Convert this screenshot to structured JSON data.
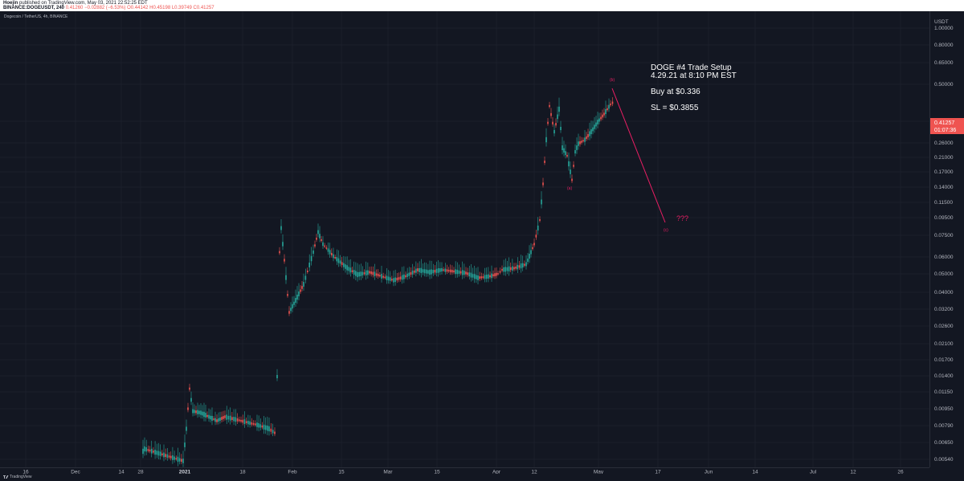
{
  "header": {
    "publisher": "Hoejin",
    "published_text": "published on TradingView.com, May 03, 2021 22:52:25 EDT",
    "symbol": "BINANCE:DOGEUSDT, 240",
    "open": "0.41260",
    "change": "−0.02882 (−6.53%)",
    "ohlc_text": "O0.44142 H0.45198 L0.39749 C0.41257"
  },
  "chart_title": "Dogecoin / TetherUS, 4h, BINANCE",
  "annotations": {
    "setup_title": "DOGE #4 Trade Setup",
    "setup_date": "4.29.21 at 8:10 PM EST",
    "buy": "Buy at $0.336",
    "sl": "SL = $0.3855",
    "question": "???",
    "wave_a": "(a)",
    "wave_b": "(b)",
    "wave_c": "(c)"
  },
  "price_axis": {
    "unit": "USDT",
    "labels": [
      "1.00000",
      "0.80000",
      "0.65000",
      "0.50000",
      "0.32000",
      "0.26000",
      "0.21000",
      "0.17000",
      "0.14000",
      "0.11500",
      "0.09500",
      "0.07500",
      "0.06000",
      "0.05000",
      "0.04000",
      "0.03200",
      "0.02600",
      "0.02100",
      "0.01700",
      "0.01400",
      "0.01150",
      "0.00950",
      "0.00790",
      "0.00650",
      "0.00540"
    ],
    "current_price": "0.41257",
    "countdown": "01:07:36"
  },
  "time_axis": {
    "labels": [
      "16",
      "Dec",
      "14",
      "28",
      "2021",
      "18",
      "Feb",
      "15",
      "Mar",
      "15",
      "Apr",
      "12",
      "May",
      "17",
      "Jun",
      "14",
      "Jul",
      "12",
      "26"
    ]
  },
  "footer": {
    "brand": "TradingView"
  },
  "colors": {
    "background": "#131722",
    "up": "#26a69a",
    "down": "#ef5350",
    "annotation": "#e91e63",
    "price_tag": "#ef5350"
  }
}
